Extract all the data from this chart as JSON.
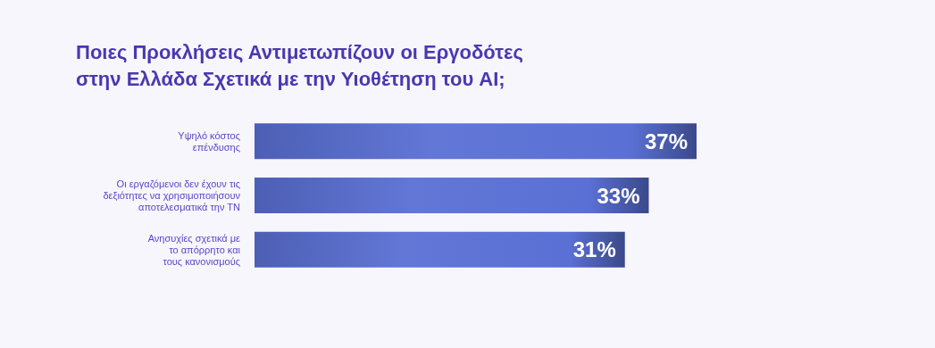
{
  "chart_data": {
    "type": "bar",
    "orientation": "horizontal",
    "title": "Ποιες Προκλήσεις Αντιμετωπίζουν οι Εργοδότες\nστην Ελλάδα Σχετικά με την Υιοθέτηση του AI;",
    "categories": [
      "Υψηλό κόστος\nεπένδυσης",
      "Οι εργαζόμενοι δεν έχουν τις\nδεξιότητες να χρησιμοποιήσουν\nαποτελεσματικά την ΤΝ",
      "Ανησυχίες σχετικά με\nτο απόρρητο και\nτους κανονισμούς"
    ],
    "series": [
      {
        "color": "#5a70d4",
        "values": [
          37,
          33,
          31
        ],
        "value_labels": [
          "37%",
          "33%",
          "31%"
        ]
      }
    ]
  }
}
